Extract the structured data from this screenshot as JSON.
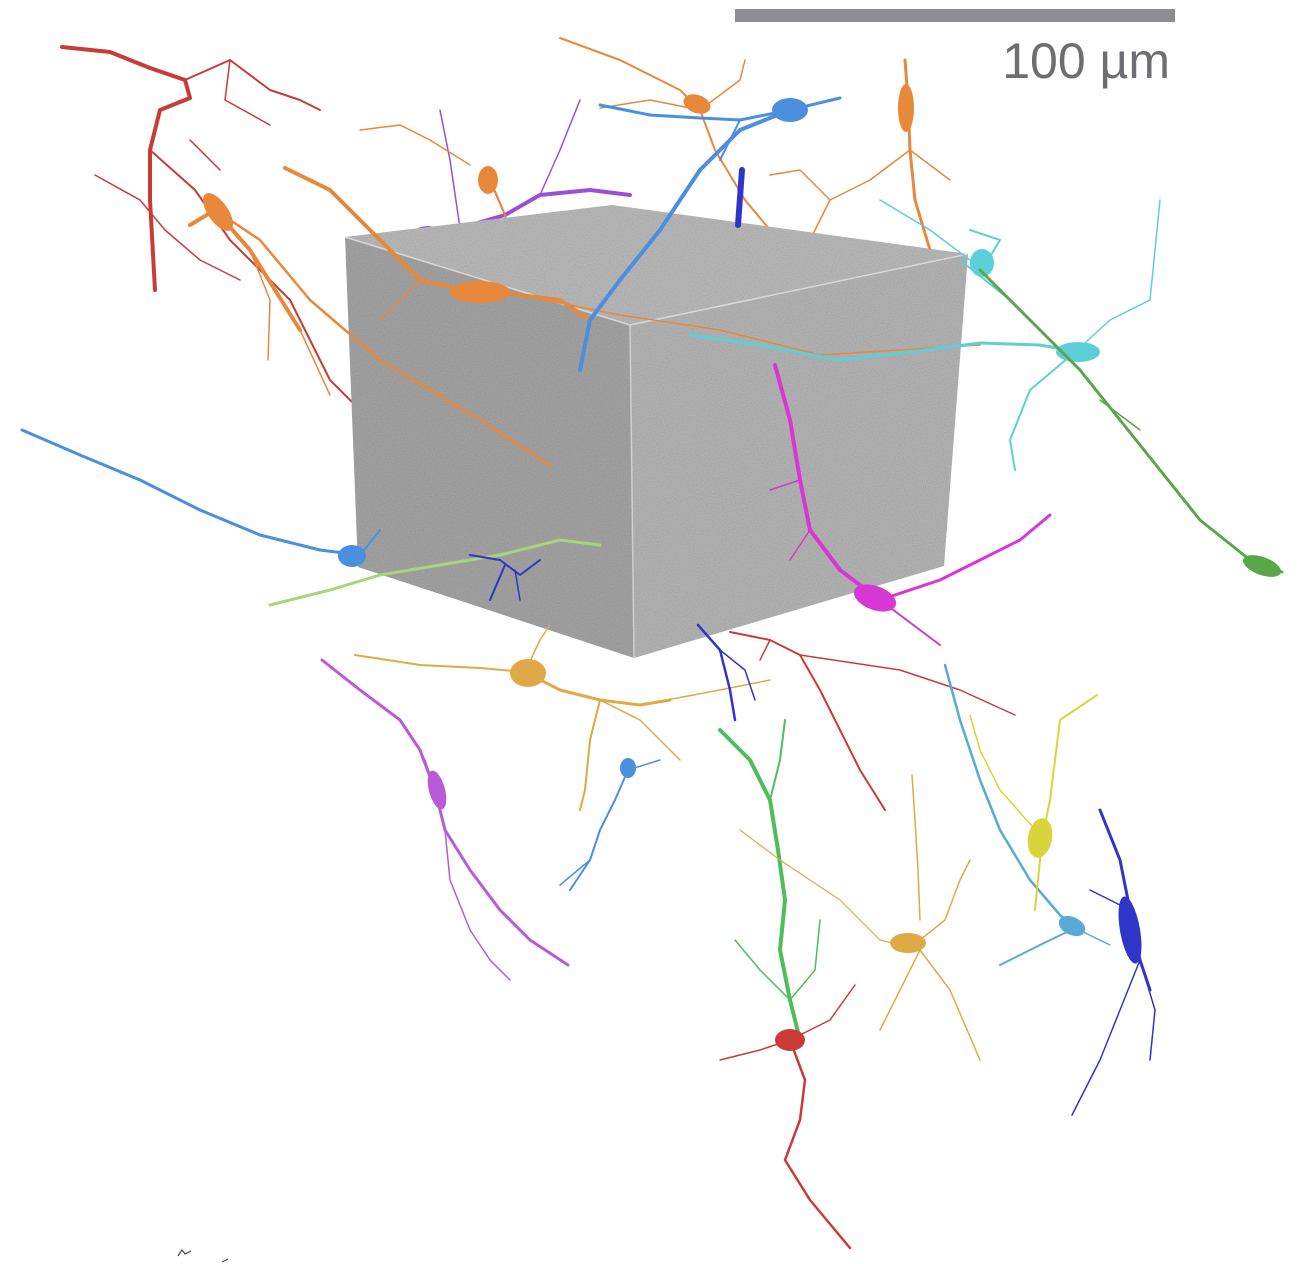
{
  "scale_bar": {
    "label": "100 µm",
    "color": "#8e8e92"
  },
  "volume": {
    "top_color": "#bdbdbd",
    "front_color": "#a7a7a7",
    "side_color": "#b8b8b8"
  },
  "neuron_colors": {
    "red": "#c93b37",
    "orange": "#e8883a",
    "purple": "#9b4fd6",
    "blue": "#4b8fde",
    "dark_blue": "#2f35c9",
    "cyan": "#5ccfd8",
    "magenta": "#d936d6",
    "green": "#5aa64a",
    "light_green": "#a8d47c",
    "gold": "#dfa945",
    "yellow": "#d9d43b",
    "violet": "#b95ad9",
    "sky": "#5aaad6",
    "lime": "#4fbe5a"
  }
}
